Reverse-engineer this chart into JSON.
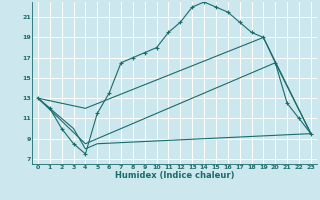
{
  "xlabel": "Humidex (Indice chaleur)",
  "bg_color": "#cce8ee",
  "grid_color": "#ffffff",
  "line_color": "#1a6b6b",
  "xlim": [
    -0.5,
    23.5
  ],
  "ylim": [
    6.5,
    22.5
  ],
  "xticks": [
    0,
    1,
    2,
    3,
    4,
    5,
    6,
    7,
    8,
    9,
    10,
    11,
    12,
    13,
    14,
    15,
    16,
    17,
    18,
    19,
    20,
    21,
    22,
    23
  ],
  "yticks": [
    7,
    9,
    11,
    13,
    15,
    17,
    19,
    21
  ],
  "series1_x": [
    0,
    1,
    2,
    3,
    4,
    5,
    6,
    7,
    8,
    9,
    10,
    11,
    12,
    13,
    14,
    15,
    16,
    17,
    18,
    19,
    20,
    21,
    22,
    23
  ],
  "series1_y": [
    13,
    12,
    10,
    8.5,
    7.5,
    11.5,
    13.5,
    16.5,
    17,
    17.5,
    18,
    19.5,
    20.5,
    22,
    22.5,
    22,
    21.5,
    20.5,
    19.5,
    19,
    16.5,
    12.5,
    11,
    9.5
  ],
  "series2_x": [
    0,
    4,
    19,
    23
  ],
  "series2_y": [
    13,
    12,
    19,
    9.5
  ],
  "series3_x": [
    0,
    4,
    20,
    23
  ],
  "series3_y": [
    13,
    8.5,
    16.5,
    9.5
  ],
  "series4_x": [
    0,
    3,
    4,
    5,
    23
  ],
  "series4_y": [
    13,
    10,
    8,
    8.5,
    9.5
  ]
}
